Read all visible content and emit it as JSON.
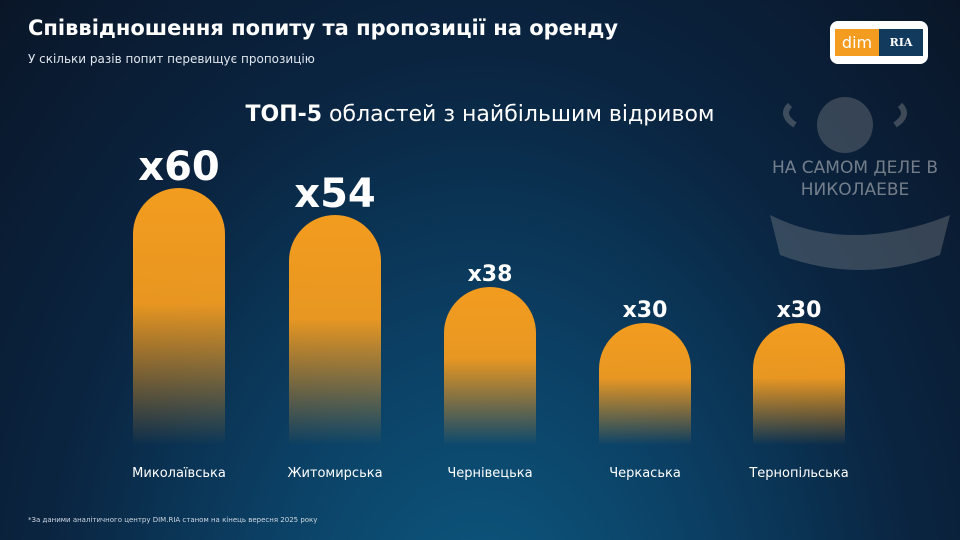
{
  "header": {
    "title": "Співвідношення попиту та пропозиції на оренду",
    "subtitle": "У скільки разів попит перевищує пропозицію"
  },
  "logo": {
    "left": "dim",
    "right": "RIA",
    "brand_colors": [
      "#f39c1f",
      "#123a5c"
    ]
  },
  "watermark": "НА САМОМ ДЕЛЕ В НИКОЛАЕВЕ",
  "chart_data": {
    "type": "bar",
    "title_bold": "ТОП-5",
    "title_rest": " областей з найбільшим відривом",
    "categories": [
      "Миколаївська",
      "Житомирська",
      "Чернівецька",
      "Черкаська",
      "Тернопільська"
    ],
    "values": [
      60,
      54,
      38,
      30,
      30
    ],
    "data_labels": [
      "x60",
      "x54",
      "x38",
      "x30",
      "x30"
    ],
    "bar_color": "#f39c1f",
    "grid": false
  },
  "footnote": "*За даними аналітичного центру DIM.RIA станом на кінець вересня 2025 року"
}
